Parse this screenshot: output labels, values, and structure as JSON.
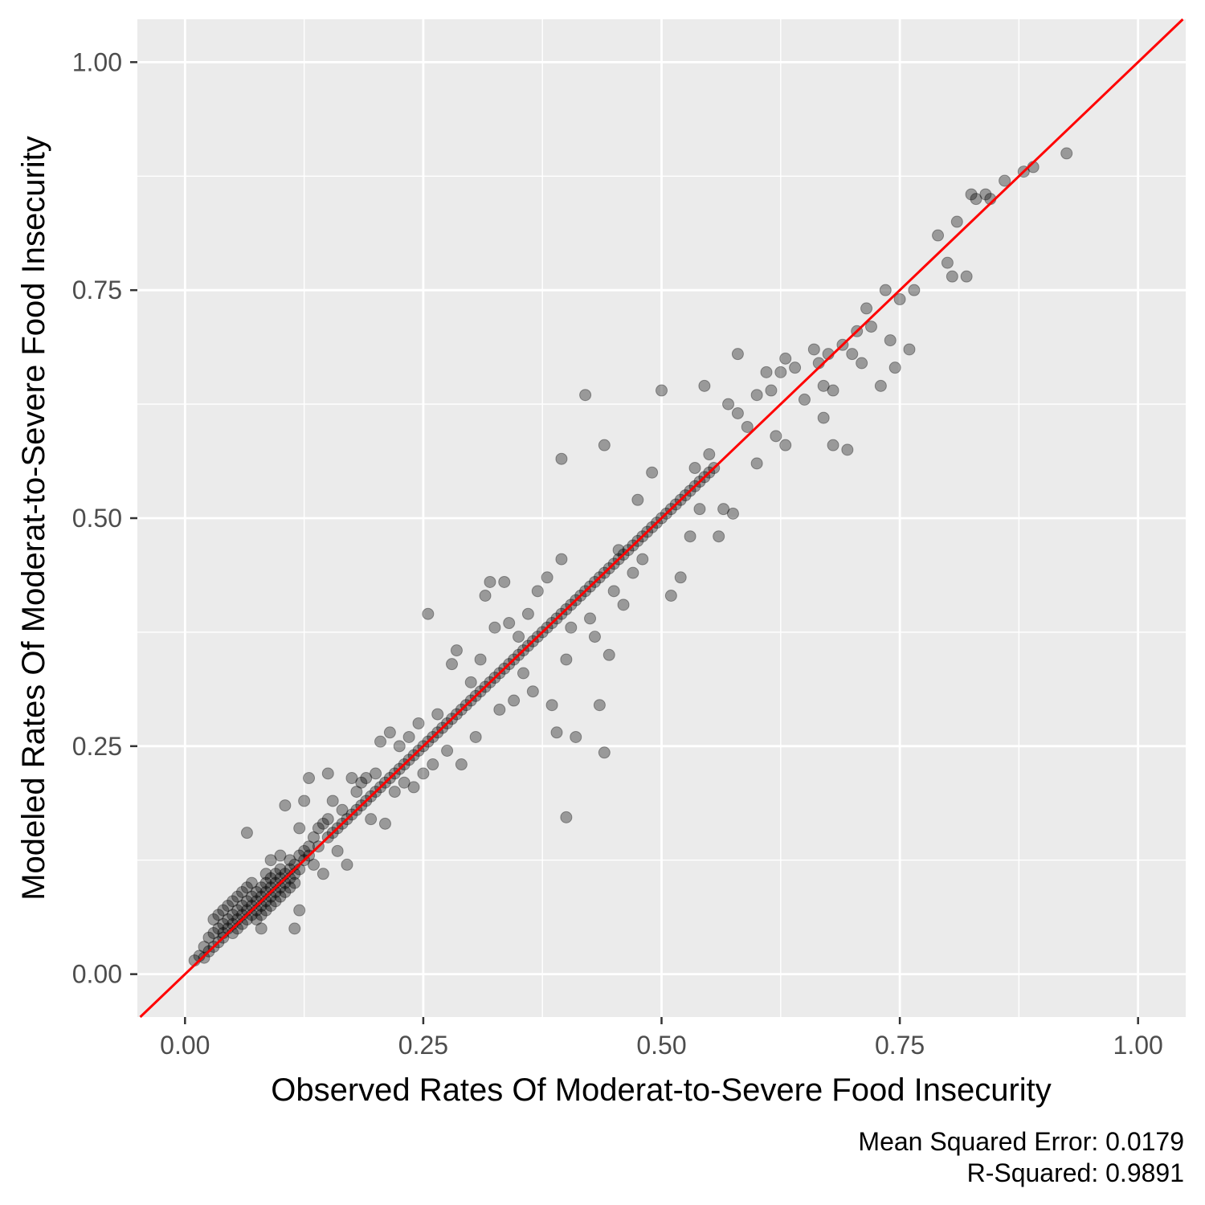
{
  "chart_data": {
    "type": "scatter",
    "title": "",
    "xlabel": "Observed Rates Of Moderat-to-Severe Food Insecurity",
    "ylabel": "Modeled Rates Of Moderat-to-Severe Food Insecurity",
    "xlim": [
      -0.05,
      1.05
    ],
    "ylim": [
      -0.047,
      1.047
    ],
    "x_ticks": [
      0.0,
      0.25,
      0.5,
      0.75,
      1.0
    ],
    "y_ticks": [
      0.0,
      0.25,
      0.5,
      0.75,
      1.0
    ],
    "x_tick_labels": [
      "0.00",
      "0.25",
      "0.50",
      "0.75",
      "1.00"
    ],
    "y_tick_labels": [
      "0.00",
      "0.25",
      "0.50",
      "0.75",
      "1.00"
    ],
    "grid": true,
    "reference_line": {
      "slope": 1,
      "intercept": 0,
      "color": "#ff0000"
    },
    "point_color": "#000000",
    "point_alpha": 0.35,
    "caption": [
      "Mean Squared Error: 0.0179",
      "R-Squared: 0.9891"
    ],
    "points": [
      [
        0.01,
        0.015
      ],
      [
        0.015,
        0.02
      ],
      [
        0.02,
        0.018
      ],
      [
        0.02,
        0.03
      ],
      [
        0.025,
        0.025
      ],
      [
        0.025,
        0.04
      ],
      [
        0.03,
        0.03
      ],
      [
        0.03,
        0.045
      ],
      [
        0.03,
        0.06
      ],
      [
        0.035,
        0.035
      ],
      [
        0.035,
        0.05
      ],
      [
        0.035,
        0.065
      ],
      [
        0.04,
        0.04
      ],
      [
        0.04,
        0.055
      ],
      [
        0.04,
        0.07
      ],
      [
        0.04,
        0.045
      ],
      [
        0.045,
        0.05
      ],
      [
        0.045,
        0.06
      ],
      [
        0.045,
        0.075
      ],
      [
        0.05,
        0.045
      ],
      [
        0.05,
        0.055
      ],
      [
        0.05,
        0.065
      ],
      [
        0.05,
        0.08
      ],
      [
        0.055,
        0.05
      ],
      [
        0.055,
        0.06
      ],
      [
        0.055,
        0.07
      ],
      [
        0.055,
        0.085
      ],
      [
        0.06,
        0.055
      ],
      [
        0.06,
        0.065
      ],
      [
        0.06,
        0.075
      ],
      [
        0.06,
        0.09
      ],
      [
        0.065,
        0.06
      ],
      [
        0.065,
        0.07
      ],
      [
        0.065,
        0.08
      ],
      [
        0.065,
        0.095
      ],
      [
        0.065,
        0.155
      ],
      [
        0.07,
        0.065
      ],
      [
        0.07,
        0.075
      ],
      [
        0.07,
        0.085
      ],
      [
        0.07,
        0.1
      ],
      [
        0.075,
        0.07
      ],
      [
        0.075,
        0.08
      ],
      [
        0.075,
        0.09
      ],
      [
        0.075,
        0.06
      ],
      [
        0.08,
        0.075
      ],
      [
        0.08,
        0.085
      ],
      [
        0.08,
        0.095
      ],
      [
        0.08,
        0.065
      ],
      [
        0.08,
        0.05
      ],
      [
        0.085,
        0.08
      ],
      [
        0.085,
        0.09
      ],
      [
        0.085,
        0.1
      ],
      [
        0.085,
        0.07
      ],
      [
        0.085,
        0.11
      ],
      [
        0.09,
        0.085
      ],
      [
        0.09,
        0.095
      ],
      [
        0.09,
        0.105
      ],
      [
        0.09,
        0.075
      ],
      [
        0.09,
        0.125
      ],
      [
        0.095,
        0.09
      ],
      [
        0.095,
        0.1
      ],
      [
        0.095,
        0.11
      ],
      [
        0.095,
        0.08
      ],
      [
        0.1,
        0.095
      ],
      [
        0.1,
        0.105
      ],
      [
        0.1,
        0.115
      ],
      [
        0.1,
        0.085
      ],
      [
        0.1,
        0.13
      ],
      [
        0.105,
        0.1
      ],
      [
        0.105,
        0.11
      ],
      [
        0.105,
        0.09
      ],
      [
        0.105,
        0.185
      ],
      [
        0.11,
        0.105
      ],
      [
        0.11,
        0.115
      ],
      [
        0.11,
        0.095
      ],
      [
        0.11,
        0.125
      ],
      [
        0.115,
        0.11
      ],
      [
        0.115,
        0.12
      ],
      [
        0.115,
        0.1
      ],
      [
        0.115,
        0.05
      ],
      [
        0.12,
        0.115
      ],
      [
        0.12,
        0.13
      ],
      [
        0.12,
        0.16
      ],
      [
        0.12,
        0.07
      ],
      [
        0.125,
        0.125
      ],
      [
        0.125,
        0.135
      ],
      [
        0.125,
        0.19
      ],
      [
        0.13,
        0.13
      ],
      [
        0.13,
        0.14
      ],
      [
        0.13,
        0.215
      ],
      [
        0.135,
        0.12
      ],
      [
        0.135,
        0.15
      ],
      [
        0.14,
        0.14
      ],
      [
        0.14,
        0.16
      ],
      [
        0.145,
        0.11
      ],
      [
        0.145,
        0.165
      ],
      [
        0.15,
        0.15
      ],
      [
        0.15,
        0.17
      ],
      [
        0.15,
        0.22
      ],
      [
        0.155,
        0.155
      ],
      [
        0.155,
        0.19
      ],
      [
        0.16,
        0.16
      ],
      [
        0.16,
        0.135
      ],
      [
        0.165,
        0.165
      ],
      [
        0.165,
        0.18
      ],
      [
        0.17,
        0.17
      ],
      [
        0.17,
        0.12
      ],
      [
        0.175,
        0.175
      ],
      [
        0.175,
        0.215
      ],
      [
        0.18,
        0.18
      ],
      [
        0.18,
        0.2
      ],
      [
        0.185,
        0.185
      ],
      [
        0.185,
        0.21
      ],
      [
        0.19,
        0.19
      ],
      [
        0.19,
        0.215
      ],
      [
        0.195,
        0.195
      ],
      [
        0.195,
        0.17
      ],
      [
        0.2,
        0.2
      ],
      [
        0.2,
        0.22
      ],
      [
        0.205,
        0.205
      ],
      [
        0.205,
        0.255
      ],
      [
        0.21,
        0.21
      ],
      [
        0.21,
        0.165
      ],
      [
        0.215,
        0.215
      ],
      [
        0.215,
        0.265
      ],
      [
        0.22,
        0.22
      ],
      [
        0.22,
        0.2
      ],
      [
        0.225,
        0.225
      ],
      [
        0.225,
        0.25
      ],
      [
        0.23,
        0.23
      ],
      [
        0.23,
        0.21
      ],
      [
        0.235,
        0.235
      ],
      [
        0.235,
        0.26
      ],
      [
        0.24,
        0.24
      ],
      [
        0.24,
        0.205
      ],
      [
        0.245,
        0.245
      ],
      [
        0.245,
        0.275
      ],
      [
        0.25,
        0.25
      ],
      [
        0.25,
        0.22
      ],
      [
        0.255,
        0.255
      ],
      [
        0.255,
        0.395
      ],
      [
        0.26,
        0.26
      ],
      [
        0.26,
        0.23
      ],
      [
        0.265,
        0.265
      ],
      [
        0.265,
        0.285
      ],
      [
        0.27,
        0.27
      ],
      [
        0.275,
        0.275
      ],
      [
        0.275,
        0.245
      ],
      [
        0.28,
        0.28
      ],
      [
        0.28,
        0.34
      ],
      [
        0.285,
        0.285
      ],
      [
        0.285,
        0.355
      ],
      [
        0.29,
        0.29
      ],
      [
        0.29,
        0.23
      ],
      [
        0.295,
        0.295
      ],
      [
        0.3,
        0.3
      ],
      [
        0.3,
        0.32
      ],
      [
        0.305,
        0.305
      ],
      [
        0.305,
        0.26
      ],
      [
        0.31,
        0.31
      ],
      [
        0.31,
        0.345
      ],
      [
        0.315,
        0.315
      ],
      [
        0.315,
        0.415
      ],
      [
        0.32,
        0.32
      ],
      [
        0.32,
        0.43
      ],
      [
        0.325,
        0.325
      ],
      [
        0.325,
        0.38
      ],
      [
        0.33,
        0.33
      ],
      [
        0.33,
        0.29
      ],
      [
        0.335,
        0.335
      ],
      [
        0.335,
        0.43
      ],
      [
        0.34,
        0.34
      ],
      [
        0.34,
        0.385
      ],
      [
        0.345,
        0.345
      ],
      [
        0.345,
        0.3
      ],
      [
        0.35,
        0.35
      ],
      [
        0.35,
        0.37
      ],
      [
        0.355,
        0.355
      ],
      [
        0.355,
        0.33
      ],
      [
        0.36,
        0.36
      ],
      [
        0.36,
        0.395
      ],
      [
        0.365,
        0.365
      ],
      [
        0.365,
        0.31
      ],
      [
        0.37,
        0.37
      ],
      [
        0.37,
        0.42
      ],
      [
        0.375,
        0.375
      ],
      [
        0.38,
        0.38
      ],
      [
        0.38,
        0.435
      ],
      [
        0.385,
        0.385
      ],
      [
        0.385,
        0.295
      ],
      [
        0.39,
        0.39
      ],
      [
        0.39,
        0.265
      ],
      [
        0.395,
        0.395
      ],
      [
        0.395,
        0.455
      ],
      [
        0.395,
        0.565
      ],
      [
        0.4,
        0.4
      ],
      [
        0.4,
        0.345
      ],
      [
        0.4,
        0.172
      ],
      [
        0.405,
        0.405
      ],
      [
        0.405,
        0.38
      ],
      [
        0.41,
        0.41
      ],
      [
        0.41,
        0.26
      ],
      [
        0.415,
        0.415
      ],
      [
        0.42,
        0.42
      ],
      [
        0.42,
        0.635
      ],
      [
        0.425,
        0.425
      ],
      [
        0.425,
        0.39
      ],
      [
        0.43,
        0.43
      ],
      [
        0.43,
        0.37
      ],
      [
        0.435,
        0.435
      ],
      [
        0.435,
        0.295
      ],
      [
        0.44,
        0.44
      ],
      [
        0.44,
        0.58
      ],
      [
        0.44,
        0.243
      ],
      [
        0.445,
        0.445
      ],
      [
        0.445,
        0.35
      ],
      [
        0.45,
        0.45
      ],
      [
        0.45,
        0.42
      ],
      [
        0.455,
        0.455
      ],
      [
        0.455,
        0.465
      ],
      [
        0.46,
        0.46
      ],
      [
        0.46,
        0.405
      ],
      [
        0.465,
        0.465
      ],
      [
        0.47,
        0.47
      ],
      [
        0.47,
        0.44
      ],
      [
        0.475,
        0.475
      ],
      [
        0.475,
        0.52
      ],
      [
        0.48,
        0.48
      ],
      [
        0.48,
        0.455
      ],
      [
        0.485,
        0.485
      ],
      [
        0.49,
        0.49
      ],
      [
        0.49,
        0.55
      ],
      [
        0.495,
        0.495
      ],
      [
        0.5,
        0.5
      ],
      [
        0.5,
        0.64
      ],
      [
        0.505,
        0.505
      ],
      [
        0.51,
        0.51
      ],
      [
        0.51,
        0.415
      ],
      [
        0.515,
        0.515
      ],
      [
        0.52,
        0.52
      ],
      [
        0.52,
        0.435
      ],
      [
        0.525,
        0.525
      ],
      [
        0.53,
        0.53
      ],
      [
        0.53,
        0.48
      ],
      [
        0.535,
        0.535
      ],
      [
        0.535,
        0.555
      ],
      [
        0.54,
        0.54
      ],
      [
        0.54,
        0.51
      ],
      [
        0.545,
        0.545
      ],
      [
        0.545,
        0.645
      ],
      [
        0.55,
        0.55
      ],
      [
        0.55,
        0.57
      ],
      [
        0.555,
        0.555
      ],
      [
        0.56,
        0.48
      ],
      [
        0.565,
        0.51
      ],
      [
        0.57,
        0.625
      ],
      [
        0.575,
        0.505
      ],
      [
        0.58,
        0.68
      ],
      [
        0.58,
        0.615
      ],
      [
        0.59,
        0.6
      ],
      [
        0.6,
        0.635
      ],
      [
        0.6,
        0.56
      ],
      [
        0.61,
        0.66
      ],
      [
        0.615,
        0.64
      ],
      [
        0.62,
        0.59
      ],
      [
        0.625,
        0.66
      ],
      [
        0.63,
        0.675
      ],
      [
        0.63,
        0.58
      ],
      [
        0.64,
        0.665
      ],
      [
        0.65,
        0.63
      ],
      [
        0.66,
        0.685
      ],
      [
        0.665,
        0.67
      ],
      [
        0.67,
        0.645
      ],
      [
        0.67,
        0.61
      ],
      [
        0.675,
        0.68
      ],
      [
        0.68,
        0.64
      ],
      [
        0.68,
        0.58
      ],
      [
        0.69,
        0.69
      ],
      [
        0.695,
        0.575
      ],
      [
        0.7,
        0.68
      ],
      [
        0.705,
        0.705
      ],
      [
        0.71,
        0.67
      ],
      [
        0.715,
        0.73
      ],
      [
        0.72,
        0.71
      ],
      [
        0.73,
        0.645
      ],
      [
        0.735,
        0.75
      ],
      [
        0.74,
        0.695
      ],
      [
        0.745,
        0.665
      ],
      [
        0.75,
        0.74
      ],
      [
        0.76,
        0.685
      ],
      [
        0.765,
        0.75
      ],
      [
        0.79,
        0.81
      ],
      [
        0.8,
        0.78
      ],
      [
        0.805,
        0.765
      ],
      [
        0.81,
        0.825
      ],
      [
        0.82,
        0.765
      ],
      [
        0.825,
        0.855
      ],
      [
        0.83,
        0.85
      ],
      [
        0.84,
        0.855
      ],
      [
        0.845,
        0.85
      ],
      [
        0.86,
        0.87
      ],
      [
        0.88,
        0.88
      ],
      [
        0.89,
        0.885
      ],
      [
        0.925,
        0.9
      ]
    ]
  }
}
